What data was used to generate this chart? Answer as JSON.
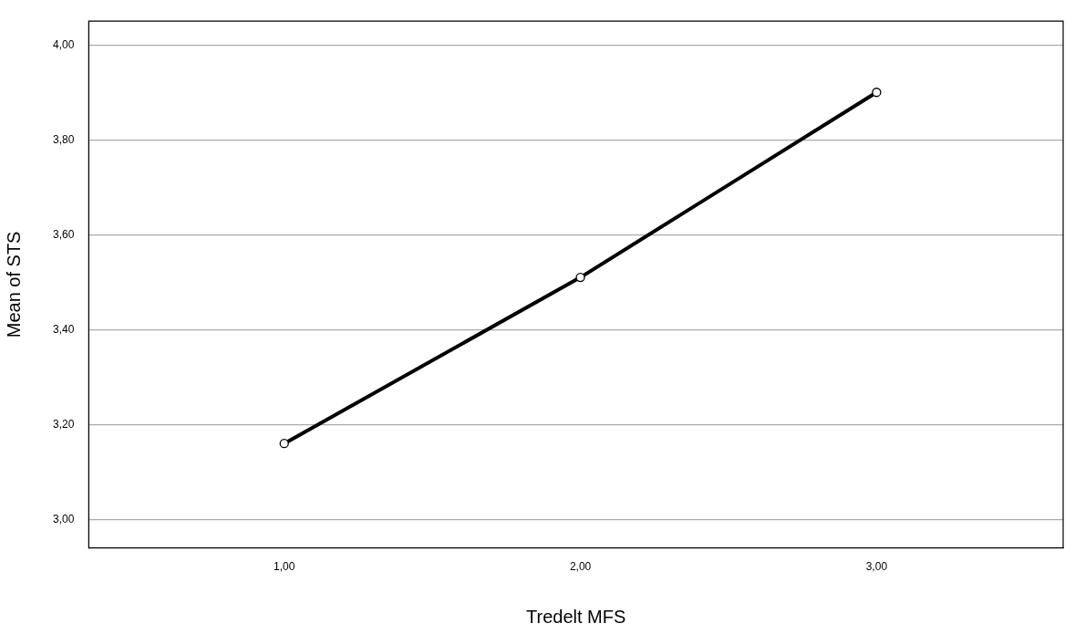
{
  "chart_data": {
    "type": "line",
    "xlabel": "Tredelt MFS",
    "ylabel": "Mean of STS",
    "x": [
      1,
      2,
      3
    ],
    "series": [
      {
        "color": "#000000",
        "values": [
          3.16,
          3.51,
          3.9
        ]
      }
    ],
    "xlim": [
      0.34,
      3.63
    ],
    "xticks": [
      {
        "value": 1,
        "label": "1,00"
      },
      {
        "value": 2,
        "label": "2,00"
      },
      {
        "value": 3,
        "label": "3,00"
      }
    ],
    "ylim": [
      2.94,
      4.05
    ],
    "yticks": [
      {
        "value": 3,
        "label": "3,00"
      },
      {
        "value": 3.2,
        "label": "3,20"
      },
      {
        "value": 3.4,
        "label": "3,40"
      },
      {
        "value": 3.6,
        "label": "3,60"
      },
      {
        "value": 3.8,
        "label": "3,80"
      },
      {
        "value": 4,
        "label": "4,00"
      }
    ],
    "grid": "y",
    "legend": false,
    "marker": "circle",
    "line_style": "solid"
  }
}
